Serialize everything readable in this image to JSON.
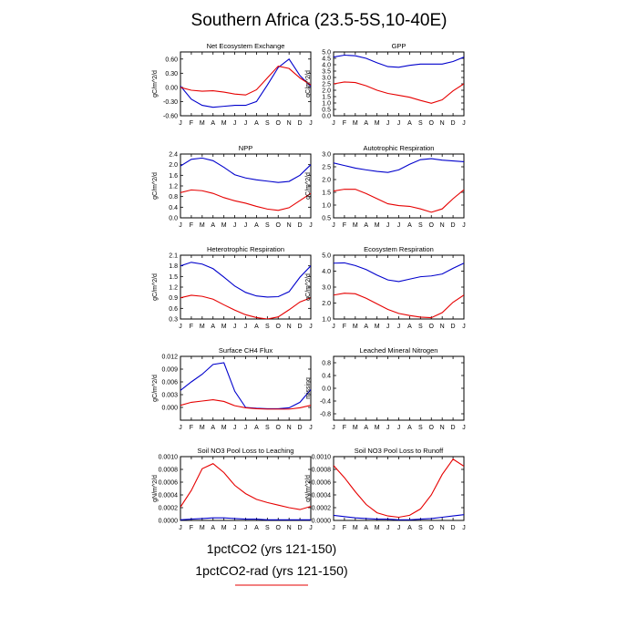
{
  "figure": {
    "title": "Southern Africa (23.5-5S,10-40E)",
    "legend": [
      {
        "label": "1pctCO2 (yrs 121-150)",
        "color": "#0000cc"
      },
      {
        "label": "1pctCO2-rad (yrs 121-150)",
        "color": "#e60000"
      }
    ]
  },
  "chart_data": [
    {
      "type": "line",
      "title": "Net Ecosystem Exchange",
      "ylabel": "gC/m^2/d",
      "categories": [
        "J",
        "F",
        "M",
        "A",
        "M",
        "J",
        "J",
        "A",
        "S",
        "O",
        "N",
        "D",
        "J"
      ],
      "ylim": [
        -0.6,
        0.75
      ],
      "yticks": [
        -0.6,
        -0.3,
        0.0,
        0.3,
        0.6
      ],
      "ytick_labels": [
        "-0.60",
        "-0.30",
        "0.00",
        "0.30",
        "0.60"
      ],
      "series": [
        {
          "color": "#0000cc",
          "values": [
            0.03,
            -0.25,
            -0.38,
            -0.42,
            -0.4,
            -0.38,
            -0.38,
            -0.3,
            0.05,
            0.42,
            0.6,
            0.25,
            0.02
          ]
        },
        {
          "color": "#e60000",
          "values": [
            0.0,
            -0.06,
            -0.08,
            -0.07,
            -0.1,
            -0.14,
            -0.16,
            -0.05,
            0.2,
            0.45,
            0.4,
            0.2,
            0.05
          ]
        }
      ]
    },
    {
      "type": "line",
      "title": "GPP",
      "ylabel": "gC/m^2/d",
      "categories": [
        "J",
        "F",
        "M",
        "A",
        "M",
        "J",
        "J",
        "A",
        "S",
        "O",
        "N",
        "D",
        "J"
      ],
      "ylim": [
        0.0,
        5.0
      ],
      "yticks": [
        0.0,
        0.5,
        1.0,
        1.5,
        2.0,
        2.5,
        3.0,
        3.5,
        4.0,
        4.5,
        5.0
      ],
      "ytick_labels": [
        "0.0",
        "0.5",
        "1.0",
        "1.5",
        "2.0",
        "2.5",
        "3.0",
        "3.5",
        "4.0",
        "4.5",
        "5.0"
      ],
      "series": [
        {
          "color": "#0000cc",
          "values": [
            4.6,
            4.75,
            4.7,
            4.5,
            4.15,
            3.85,
            3.8,
            3.95,
            4.05,
            4.05,
            4.05,
            4.25,
            4.6
          ]
        },
        {
          "color": "#e60000",
          "values": [
            2.5,
            2.65,
            2.6,
            2.35,
            2.0,
            1.75,
            1.6,
            1.45,
            1.2,
            0.98,
            1.25,
            1.95,
            2.5
          ]
        }
      ]
    },
    {
      "type": "line",
      "title": "NPP",
      "ylabel": "gC/m^2/d",
      "categories": [
        "J",
        "F",
        "M",
        "A",
        "M",
        "J",
        "J",
        "A",
        "S",
        "O",
        "N",
        "D",
        "J"
      ],
      "ylim": [
        0.0,
        2.4
      ],
      "yticks": [
        0.0,
        0.4,
        0.8,
        1.2,
        1.6,
        2.0,
        2.4
      ],
      "ytick_labels": [
        "0.0",
        "0.4",
        "0.8",
        "1.2",
        "1.6",
        "2.0",
        "2.4"
      ],
      "series": [
        {
          "color": "#0000cc",
          "values": [
            1.95,
            2.2,
            2.25,
            2.15,
            1.9,
            1.62,
            1.5,
            1.43,
            1.38,
            1.33,
            1.37,
            1.6,
            2.0
          ]
        },
        {
          "color": "#e60000",
          "values": [
            0.95,
            1.05,
            1.02,
            0.92,
            0.76,
            0.64,
            0.55,
            0.43,
            0.33,
            0.28,
            0.38,
            0.65,
            0.92
          ]
        }
      ]
    },
    {
      "type": "line",
      "title": "Autotrophic Respiration",
      "ylabel": "gC/m^2/d",
      "categories": [
        "J",
        "F",
        "M",
        "A",
        "M",
        "J",
        "J",
        "A",
        "S",
        "O",
        "N",
        "D",
        "J"
      ],
      "ylim": [
        0.5,
        3.0
      ],
      "yticks": [
        0.5,
        1.0,
        1.5,
        2.0,
        2.5,
        3.0
      ],
      "ytick_labels": [
        "0.5",
        "1.0",
        "1.5",
        "2.0",
        "2.5",
        "3.0"
      ],
      "series": [
        {
          "color": "#0000cc",
          "values": [
            2.65,
            2.55,
            2.45,
            2.38,
            2.32,
            2.28,
            2.38,
            2.6,
            2.78,
            2.82,
            2.76,
            2.73,
            2.7
          ]
        },
        {
          "color": "#e60000",
          "values": [
            1.55,
            1.62,
            1.62,
            1.45,
            1.25,
            1.05,
            0.98,
            0.95,
            0.85,
            0.72,
            0.85,
            1.25,
            1.6
          ]
        }
      ]
    },
    {
      "type": "line",
      "title": "Heterotrophic Respiration",
      "ylabel": "gC/m^2/d",
      "categories": [
        "J",
        "F",
        "M",
        "A",
        "M",
        "J",
        "J",
        "A",
        "S",
        "O",
        "N",
        "D",
        "J"
      ],
      "ylim": [
        0.3,
        2.1
      ],
      "yticks": [
        0.3,
        0.6,
        0.9,
        1.2,
        1.5,
        1.8,
        2.1
      ],
      "ytick_labels": [
        "0.3",
        "0.6",
        "0.9",
        "1.2",
        "1.5",
        "1.8",
        "2.1"
      ],
      "series": [
        {
          "color": "#0000cc",
          "values": [
            1.8,
            1.9,
            1.85,
            1.72,
            1.48,
            1.23,
            1.05,
            0.95,
            0.92,
            0.93,
            1.07,
            1.48,
            1.8
          ]
        },
        {
          "color": "#e60000",
          "values": [
            0.9,
            0.97,
            0.94,
            0.86,
            0.7,
            0.55,
            0.42,
            0.34,
            0.3,
            0.36,
            0.56,
            0.78,
            0.9
          ]
        }
      ]
    },
    {
      "type": "line",
      "title": "Ecosystem Respiration",
      "ylabel": "gC/m^2/d",
      "categories": [
        "J",
        "F",
        "M",
        "A",
        "M",
        "J",
        "J",
        "A",
        "S",
        "O",
        "N",
        "D",
        "J"
      ],
      "ylim": [
        1.0,
        5.0
      ],
      "yticks": [
        1.0,
        2.0,
        3.0,
        4.0,
        5.0
      ],
      "ytick_labels": [
        "1.0",
        "2.0",
        "3.0",
        "4.0",
        "5.0"
      ],
      "series": [
        {
          "color": "#0000cc",
          "values": [
            4.5,
            4.52,
            4.35,
            4.1,
            3.75,
            3.45,
            3.35,
            3.5,
            3.65,
            3.7,
            3.82,
            4.18,
            4.5
          ]
        },
        {
          "color": "#e60000",
          "values": [
            2.5,
            2.62,
            2.58,
            2.3,
            1.95,
            1.6,
            1.35,
            1.22,
            1.12,
            1.08,
            1.4,
            2.05,
            2.5
          ]
        }
      ]
    },
    {
      "type": "line",
      "title": "Surface CH4 Flux",
      "ylabel": "gC/m^2/d",
      "categories": [
        "J",
        "F",
        "M",
        "A",
        "M",
        "J",
        "J",
        "A",
        "S",
        "O",
        "N",
        "D",
        "J"
      ],
      "ylim": [
        -0.003,
        0.012
      ],
      "yticks": [
        0.0,
        0.003,
        0.006,
        0.009,
        0.012
      ],
      "ytick_labels": [
        "0.000",
        "0.003",
        "0.006",
        "0.009",
        "0.012"
      ],
      "series": [
        {
          "color": "#0000cc",
          "values": [
            0.004,
            0.006,
            0.0078,
            0.0101,
            0.0105,
            0.0038,
            0.0,
            -0.0002,
            -0.0003,
            -0.0003,
            -0.0001,
            0.0012,
            0.0042
          ]
        },
        {
          "color": "#e60000",
          "values": [
            0.0005,
            0.0012,
            0.0015,
            0.0018,
            0.0014,
            0.0004,
            -0.0001,
            -0.0003,
            -0.0004,
            -0.0004,
            -0.0004,
            -0.0001,
            0.0005
          ]
        }
      ]
    },
    {
      "type": "line",
      "title": "Leached Mineral Nitrogen",
      "ylabel": "missing",
      "categories": [
        "J",
        "F",
        "M",
        "A",
        "M",
        "J",
        "J",
        "A",
        "S",
        "O",
        "N",
        "D",
        "J"
      ],
      "ylim": [
        -1.0,
        1.0
      ],
      "yticks": [
        -0.8,
        -0.4,
        0.0,
        0.4,
        0.8
      ],
      "ytick_labels": [
        "-0.8",
        "-0.4",
        "0.0",
        "0.4",
        "0.8"
      ],
      "series": []
    },
    {
      "type": "line",
      "title": "Soil NO3 Pool Loss to Leaching",
      "ylabel": "gN/m^2/d",
      "categories": [
        "J",
        "F",
        "M",
        "A",
        "M",
        "J",
        "J",
        "A",
        "S",
        "O",
        "N",
        "D",
        "J"
      ],
      "ylim": [
        0.0,
        0.001
      ],
      "yticks": [
        0.0,
        0.0002,
        0.0004,
        0.0006,
        0.0008,
        0.001
      ],
      "ytick_labels": [
        "0.0000",
        "0.0002",
        "0.0004",
        "0.0006",
        "0.0008",
        "0.0010"
      ],
      "series": [
        {
          "color": "#0000cc",
          "values": [
            1e-05,
            2e-05,
            3e-05,
            4e-05,
            4e-05,
            3e-05,
            2e-05,
            2e-05,
            1e-05,
            1e-05,
            1e-05,
            1e-05,
            1e-05
          ]
        },
        {
          "color": "#e60000",
          "values": [
            0.00021,
            0.00047,
            0.00081,
            0.00089,
            0.00075,
            0.00055,
            0.00042,
            0.00033,
            0.00028,
            0.00024,
            0.0002,
            0.00017,
            0.00022
          ]
        }
      ]
    },
    {
      "type": "line",
      "title": "Soil NO3 Pool Loss to Runoff",
      "ylabel": "gN/m^2/d",
      "categories": [
        "J",
        "F",
        "M",
        "A",
        "M",
        "J",
        "J",
        "A",
        "S",
        "O",
        "N",
        "D",
        "J"
      ],
      "ylim": [
        0.0,
        0.001
      ],
      "yticks": [
        0.0,
        0.0002,
        0.0004,
        0.0006,
        0.0008,
        0.001
      ],
      "ytick_labels": [
        "0.0000",
        "0.0002",
        "0.0004",
        "0.0006",
        "0.0008",
        "0.0010"
      ],
      "series": [
        {
          "color": "#0000cc",
          "values": [
            8e-05,
            6e-05,
            4e-05,
            3e-05,
            2e-05,
            2e-05,
            1e-05,
            1e-05,
            2e-05,
            3e-05,
            5e-05,
            7e-05,
            9e-05
          ]
        },
        {
          "color": "#e60000",
          "values": [
            0.00086,
            0.00067,
            0.00045,
            0.00025,
            0.00012,
            7e-05,
            5e-05,
            8e-05,
            0.00018,
            0.0004,
            0.00072,
            0.00096,
            0.00085
          ]
        }
      ]
    }
  ]
}
